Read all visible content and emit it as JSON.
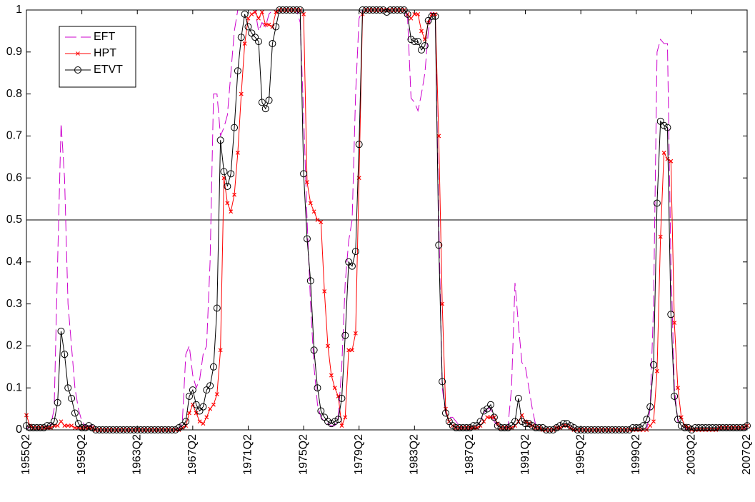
{
  "chart_data": {
    "type": "line",
    "categories": [
      "1955Q2",
      null,
      null,
      null,
      null,
      null,
      null,
      null,
      null,
      null,
      null,
      null,
      null,
      null,
      null,
      null,
      "1959Q2",
      null,
      null,
      null,
      null,
      null,
      null,
      null,
      null,
      null,
      null,
      null,
      null,
      null,
      null,
      null,
      "1963Q2",
      null,
      null,
      null,
      null,
      null,
      null,
      null,
      null,
      null,
      null,
      null,
      null,
      null,
      null,
      null,
      "1967Q2",
      null,
      null,
      null,
      null,
      null,
      null,
      null,
      null,
      null,
      null,
      null,
      null,
      null,
      null,
      null,
      "1971Q2",
      null,
      null,
      null,
      null,
      null,
      null,
      null,
      null,
      null,
      null,
      null,
      null,
      null,
      null,
      null,
      "1975Q2",
      null,
      null,
      null,
      null,
      null,
      null,
      null,
      null,
      null,
      null,
      null,
      null,
      null,
      null,
      null,
      "1979Q2",
      null,
      null,
      null,
      null,
      null,
      null,
      null,
      null,
      null,
      null,
      null,
      null,
      null,
      null,
      null,
      "1983Q2",
      null,
      null,
      null,
      null,
      null,
      null,
      null,
      null,
      null,
      null,
      null,
      null,
      null,
      null,
      null,
      "1987Q2",
      null,
      null,
      null,
      null,
      null,
      null,
      null,
      null,
      null,
      null,
      null,
      null,
      null,
      null,
      null,
      "1991Q2",
      null,
      null,
      null,
      null,
      null,
      null,
      null,
      null,
      null,
      null,
      null,
      null,
      null,
      null,
      null,
      "1995Q2",
      null,
      null,
      null,
      null,
      null,
      null,
      null,
      null,
      null,
      null,
      null,
      null,
      null,
      null,
      null,
      "1999Q2",
      null,
      null,
      null,
      null,
      null,
      null,
      null,
      null,
      null,
      null,
      null,
      null,
      null,
      null,
      null,
      "2003Q2",
      null,
      null,
      null,
      null,
      null,
      null,
      null,
      null,
      null,
      null,
      null,
      null,
      null,
      null,
      null,
      "2007Q2"
    ],
    "series": [
      {
        "name": "EFT",
        "color": "#cc00cc",
        "dash": true,
        "marker": "none",
        "values": [
          0.005,
          0.005,
          0.005,
          0.005,
          0.005,
          0.005,
          0.01,
          0.01,
          0.05,
          0.4,
          0.73,
          0.6,
          0.3,
          0.2,
          0.1,
          0.05,
          0.02,
          0.01,
          0.01,
          0.01,
          0,
          0,
          0,
          0,
          0,
          0,
          0,
          0,
          0,
          0,
          0,
          0,
          0,
          0,
          0,
          0,
          0,
          0,
          0,
          0,
          0,
          0,
          0,
          0,
          0,
          0.02,
          0.18,
          0.2,
          0.13,
          0.1,
          0.12,
          0.18,
          0.2,
          0.4,
          0.8,
          0.8,
          0.7,
          0.72,
          0.75,
          0.85,
          0.95,
          1,
          1,
          1,
          1,
          1,
          1,
          0.95,
          0.97,
          0.96,
          0.99,
          1,
          1,
          1,
          1,
          1,
          1,
          1,
          1,
          0.97,
          0.75,
          0.5,
          0.3,
          0.15,
          0.06,
          0.03,
          0.02,
          0.015,
          0.01,
          0.01,
          0.03,
          0.15,
          0.35,
          0.45,
          0.5,
          0.8,
          0.98,
          1,
          1,
          1,
          1,
          1,
          1,
          1,
          1,
          1,
          1,
          1,
          1,
          1,
          0.98,
          0.79,
          0.78,
          0.76,
          0.8,
          0.85,
          0.95,
          1,
          0.99,
          0.5,
          0.1,
          0.04,
          0.03,
          0.03,
          0.02,
          0.01,
          0.005,
          0.005,
          0.005,
          0.01,
          0.01,
          0.02,
          0.04,
          0.05,
          0.05,
          0.02,
          0.01,
          0.005,
          0.005,
          0.01,
          0.1,
          0.35,
          0.25,
          0.16,
          0.15,
          0.1,
          0.05,
          0.01,
          0.005,
          0,
          0,
          0,
          0,
          0.005,
          0.01,
          0.015,
          0.015,
          0.01,
          0.005,
          0,
          0,
          0,
          0,
          0,
          0,
          0,
          0,
          0,
          0,
          0,
          0,
          0,
          0,
          0,
          0,
          0,
          0,
          0,
          0,
          0,
          0.05,
          0.3,
          0.9,
          0.93,
          0.92,
          0.92,
          0.4,
          0.1,
          0.02,
          0.01,
          0.005,
          0,
          0,
          0,
          0,
          0,
          0,
          0,
          0,
          0,
          0,
          0,
          0,
          0,
          0,
          0,
          0,
          0,
          0.005
        ]
      },
      {
        "name": "HPT",
        "color": "#ff0000",
        "dash": false,
        "marker": "x",
        "values": [
          0.035,
          0.01,
          0.005,
          0.005,
          0.005,
          0.005,
          0.005,
          0.005,
          0.01,
          0.01,
          0.02,
          0.01,
          0.01,
          0.01,
          0.005,
          0.005,
          0.005,
          0.005,
          0.005,
          0.005,
          0,
          0,
          0,
          0,
          0,
          0,
          0,
          0,
          0,
          0,
          0,
          0,
          0,
          0,
          0,
          0,
          0,
          0,
          0,
          0,
          0,
          0,
          0,
          0,
          0,
          0.005,
          0.01,
          0.04,
          0.06,
          0.04,
          0.02,
          0.015,
          0.03,
          0.05,
          0.06,
          0.085,
          0.19,
          0.6,
          0.54,
          0.52,
          0.56,
          0.66,
          0.8,
          0.92,
          0.98,
          0.99,
          0.995,
          0.98,
          0.995,
          0.965,
          0.965,
          0.96,
          0.995,
          1,
          1,
          1,
          1,
          1,
          1,
          1,
          0.99,
          0.59,
          0.54,
          0.52,
          0.5,
          0.495,
          0.33,
          0.2,
          0.13,
          0.1,
          0.08,
          0.01,
          0.03,
          0.19,
          0.19,
          0.23,
          0.6,
          0.99,
          1,
          1,
          1,
          1,
          1,
          1,
          1,
          1,
          1,
          1,
          1,
          1,
          0.99,
          0.98,
          0.99,
          0.99,
          0.95,
          0.93,
          0.97,
          0.99,
          0.99,
          0.7,
          0.3,
          0.05,
          0.02,
          0.01,
          0.005,
          0.005,
          0.005,
          0.005,
          0.005,
          0.005,
          0.005,
          0.01,
          0.02,
          0.03,
          0.03,
          0.03,
          0.015,
          0.005,
          0.005,
          0.005,
          0.005,
          0.01,
          0.02,
          0.035,
          0.02,
          0.015,
          0.01,
          0.005,
          0.005,
          0,
          0,
          0,
          0,
          0.005,
          0.005,
          0.01,
          0.01,
          0.005,
          0,
          0,
          0,
          0,
          0,
          0,
          0,
          0,
          0,
          0,
          0,
          0,
          0,
          0,
          0,
          0,
          0,
          0,
          0,
          0,
          0,
          0,
          0.01,
          0.02,
          0.14,
          0.46,
          0.66,
          0.645,
          0.64,
          0.255,
          0.1,
          0.03,
          0.01,
          0.005,
          0,
          0,
          0,
          0,
          0,
          0,
          0,
          0,
          0.005,
          0.005,
          0.005,
          0.005,
          0.005,
          0.005,
          0.005,
          0.005,
          0.01
        ]
      },
      {
        "name": "ETVT",
        "color": "#000000",
        "dash": false,
        "marker": "circle",
        "values": [
          0.01,
          0.005,
          0.005,
          0.005,
          0.005,
          0.005,
          0.01,
          0.01,
          0.02,
          0.065,
          0.235,
          0.18,
          0.1,
          0.075,
          0.04,
          0.015,
          0.005,
          0.005,
          0.01,
          0.005,
          0,
          0,
          0,
          0,
          0,
          0,
          0,
          0,
          0,
          0,
          0,
          0,
          0,
          0,
          0,
          0,
          0,
          0,
          0,
          0,
          0,
          0,
          0,
          0,
          0.005,
          0.01,
          0.02,
          0.08,
          0.095,
          0.06,
          0.045,
          0.055,
          0.095,
          0.105,
          0.15,
          0.29,
          0.69,
          0.615,
          0.58,
          0.61,
          0.72,
          0.855,
          0.935,
          0.99,
          0.96,
          0.945,
          0.935,
          0.925,
          0.78,
          0.765,
          0.785,
          0.92,
          0.96,
          1,
          1,
          1,
          1,
          1,
          1,
          1,
          0.61,
          0.455,
          0.355,
          0.19,
          0.1,
          0.045,
          0.03,
          0.02,
          0.015,
          0.02,
          0.025,
          0.075,
          0.225,
          0.4,
          0.39,
          0.425,
          0.68,
          1,
          1,
          1,
          1,
          1,
          1,
          1,
          0.995,
          1,
          1,
          1,
          1,
          1,
          0.99,
          0.93,
          0.925,
          0.925,
          0.905,
          0.915,
          0.975,
          0.985,
          0.985,
          0.44,
          0.115,
          0.04,
          0.02,
          0.01,
          0.005,
          0.005,
          0.005,
          0.005,
          0.005,
          0.01,
          0.01,
          0.02,
          0.045,
          0.05,
          0.06,
          0.03,
          0.01,
          0.005,
          0.005,
          0.005,
          0.01,
          0.02,
          0.075,
          0.02,
          0.015,
          0.015,
          0.01,
          0.005,
          0.005,
          0.005,
          0,
          0,
          0,
          0.005,
          0.01,
          0.015,
          0.015,
          0.01,
          0.005,
          0,
          0,
          0,
          0,
          0,
          0,
          0,
          0,
          0,
          0,
          0,
          0,
          0,
          0,
          0,
          0,
          0.005,
          0.005,
          0.005,
          0.01,
          0.025,
          0.055,
          0.155,
          0.54,
          0.735,
          0.725,
          0.72,
          0.275,
          0.08,
          0.025,
          0.01,
          0.005,
          0.005,
          0,
          0.005,
          0.005,
          0.005,
          0.005,
          0.005,
          0.005,
          0.005,
          0.005,
          0.005,
          0.005,
          0.005,
          0.005,
          0.005,
          0.005,
          0.005,
          0.01
        ]
      }
    ],
    "ylim": [
      0,
      1
    ],
    "yticks": [
      0,
      0.1,
      0.2,
      0.3,
      0.4,
      0.5,
      0.6,
      0.7,
      0.8,
      0.9,
      1
    ],
    "reference_line": 0.5,
    "legend": "upper left",
    "grid": false
  }
}
